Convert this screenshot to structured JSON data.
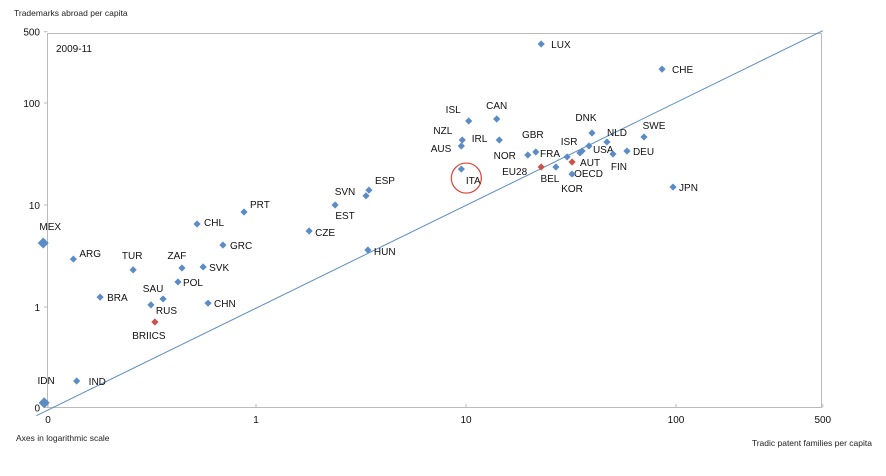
{
  "chart_data": {
    "type": "scatter",
    "title": "",
    "period": "2009-11",
    "ylabel": "Trademarks abroad per capita",
    "xlabel": "Tradic patent families per capita",
    "note": "Axes in logarithmic scale",
    "xscale": "log",
    "yscale": "log",
    "xlim": [
      0.1,
      500
    ],
    "ylim": [
      0.1,
      500
    ],
    "x_ticks": [
      {
        "value": 0.1,
        "label": "0"
      },
      {
        "value": 1,
        "label": "1"
      },
      {
        "value": 10,
        "label": "10"
      },
      {
        "value": 100,
        "label": "100"
      },
      {
        "value": 500,
        "label": "500"
      }
    ],
    "y_ticks": [
      {
        "value": 0.1,
        "label": "0"
      },
      {
        "value": 1,
        "label": "1"
      },
      {
        "value": 10,
        "label": "10"
      },
      {
        "value": 100,
        "label": "100"
      },
      {
        "value": 500,
        "label": "500"
      }
    ],
    "reference_line": "y = x",
    "highlighted": "ITA",
    "colors": {
      "country": "#5b8cc6",
      "aggregate": "#c9524b",
      "line": "#5b8cc6",
      "highlight": "#e0413a"
    },
    "points": [
      {
        "label": "LUX",
        "x": 22.8,
        "y": 379
      },
      {
        "label": "CHE",
        "x": 85.8,
        "y": 215
      },
      {
        "label": "ISL",
        "x": 10.3,
        "y": 66.6
      },
      {
        "label": "CAN",
        "x": 14.0,
        "y": 69.7
      },
      {
        "label": "NZL",
        "x": 9.6,
        "y": 43.4
      },
      {
        "label": "IRL",
        "x": 14.4,
        "y": 43.4
      },
      {
        "label": "AUS",
        "x": 9.5,
        "y": 37.9
      },
      {
        "label": "ITA",
        "x": 9.5,
        "y": 22.5
      },
      {
        "label": "NOR",
        "x": 19.7,
        "y": 30.9
      },
      {
        "label": "GBR",
        "x": 21.5,
        "y": 33.1
      },
      {
        "label": "EU28",
        "x": 22.8,
        "y": 23.6,
        "aggregate": true
      },
      {
        "label": "BEL",
        "x": 26.8,
        "y": 23.6
      },
      {
        "label": "ISR",
        "x": 30.3,
        "y": 29.6
      },
      {
        "label": "OECD",
        "x": 32.0,
        "y": 26.4,
        "aggregate": true
      },
      {
        "label": "KOR",
        "x": 32.0,
        "y": 20.1
      },
      {
        "label": "FRA",
        "x": 34.9,
        "y": 32.4
      },
      {
        "label": "AUT",
        "x": 35.7,
        "y": 33.8
      },
      {
        "label": "USA",
        "x": 38.5,
        "y": 37.9
      },
      {
        "label": "DNK",
        "x": 39.8,
        "y": 50.8
      },
      {
        "label": "NLD",
        "x": 46.9,
        "y": 41.5
      },
      {
        "label": "FIN",
        "x": 50.1,
        "y": 31.6
      },
      {
        "label": "DEU",
        "x": 58.4,
        "y": 33.8
      },
      {
        "label": "SWE",
        "x": 70.4,
        "y": 46.4
      },
      {
        "label": "JPN",
        "x": 96.8,
        "y": 15.0
      },
      {
        "label": "ESP",
        "x": 3.45,
        "y": 14.0
      },
      {
        "label": "SVN",
        "x": 3.34,
        "y": 12.3
      },
      {
        "label": "EST",
        "x": 2.38,
        "y": 10.0
      },
      {
        "label": "CZE",
        "x": 1.79,
        "y": 5.56
      },
      {
        "label": "HUN",
        "x": 3.41,
        "y": 3.62
      },
      {
        "label": "PRT",
        "x": 0.877,
        "y": 8.54
      },
      {
        "label": "CHL",
        "x": 0.524,
        "y": 6.51
      },
      {
        "label": "GRC",
        "x": 0.696,
        "y": 4.05
      },
      {
        "label": "SVK",
        "x": 0.56,
        "y": 2.47
      },
      {
        "label": "ZAF",
        "x": 0.444,
        "y": 2.41
      },
      {
        "label": "POL",
        "x": 0.425,
        "y": 1.76
      },
      {
        "label": "CHN",
        "x": 0.591,
        "y": 1.09
      },
      {
        "label": "SAU",
        "x": 0.361,
        "y": 1.2
      },
      {
        "label": "RUS",
        "x": 0.316,
        "y": 1.05
      },
      {
        "label": "BRIICS",
        "x": 0.33,
        "y": 0.713,
        "aggregate": true
      },
      {
        "label": "BRA",
        "x": 0.181,
        "y": 1.25
      },
      {
        "label": "TUR",
        "x": 0.26,
        "y": 2.31
      },
      {
        "label": "ARG",
        "x": 0.135,
        "y": 2.95
      },
      {
        "label": "MEX",
        "x": 0.097,
        "y": 4.24,
        "large": true
      },
      {
        "label": "IND",
        "x": 0.14,
        "y": 0.188
      },
      {
        "label": "IDN",
        "x": 0.098,
        "y": 0.115,
        "large": true
      }
    ]
  }
}
